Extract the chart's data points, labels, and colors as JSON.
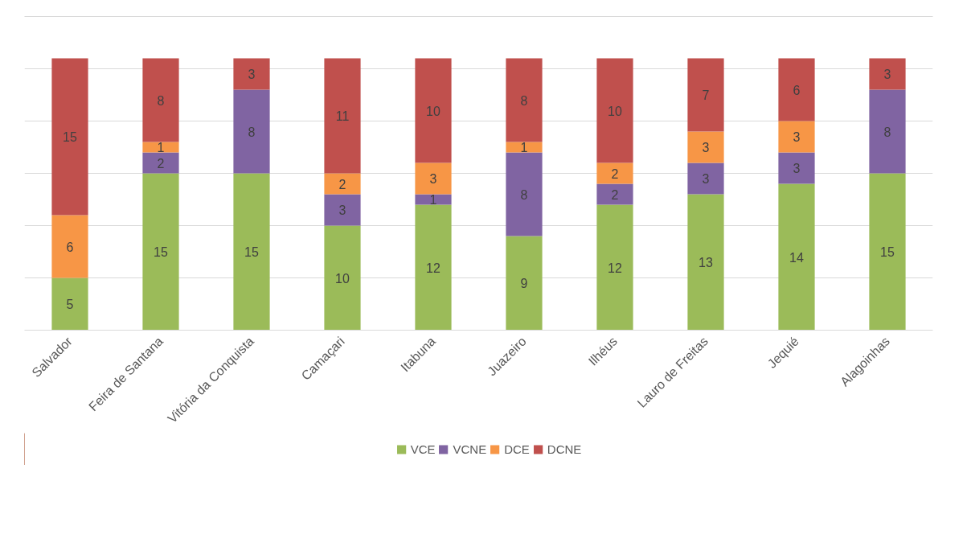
{
  "chart_data": {
    "type": "bar",
    "stacked": true,
    "categories": [
      "Salvador",
      "Feira de Santana",
      "Vitória da Conquista",
      "Camaçari",
      "Itabuna",
      "Juazeiro",
      "Ilhéus",
      "Lauro de Freitas",
      "Jequié",
      "Alagoinhas"
    ],
    "series": [
      {
        "name": "VCE",
        "color": "#9bbb59",
        "values": [
          5,
          15,
          15,
          10,
          12,
          9,
          12,
          13,
          14,
          15
        ],
        "value_labels": [
          "5",
          "15",
          "15",
          "10",
          "12",
          "9",
          "12",
          "13",
          "14",
          "15"
        ]
      },
      {
        "name": "VCNE",
        "color": "#8064a2",
        "values": [
          0,
          2,
          8,
          3,
          1,
          8,
          2,
          3,
          3,
          8
        ],
        "value_labels": [
          null,
          "2",
          "8",
          "3",
          "1",
          "8",
          "2",
          "3",
          "3",
          "8"
        ]
      },
      {
        "name": "DCE",
        "color": "#f79646",
        "values": [
          6,
          1,
          0,
          2,
          3,
          1,
          2,
          3,
          3,
          0
        ],
        "value_labels": [
          "6",
          "1",
          null,
          "2",
          "3",
          "1",
          "2",
          "3",
          "3",
          null
        ]
      },
      {
        "name": "DCNE",
        "color": "#c0504d",
        "values": [
          15,
          8,
          3,
          11,
          10,
          8,
          10,
          7,
          6,
          3
        ],
        "value_labels": [
          "15",
          "8",
          "3",
          "11",
          "10",
          "8",
          "10",
          "7",
          "6",
          "3"
        ]
      }
    ],
    "yticks": [
      {
        "value": 0,
        "label": null
      },
      {
        "value": 5,
        "label": null
      },
      {
        "value": 10,
        "label": null
      },
      {
        "value": 15,
        "label": null
      },
      {
        "value": 20,
        "label": null
      },
      {
        "value": 25,
        "label": null
      }
    ],
    "ylim": [
      0,
      30
    ],
    "tick_labels": "x",
    "grid": "y",
    "legend": "bottom"
  }
}
